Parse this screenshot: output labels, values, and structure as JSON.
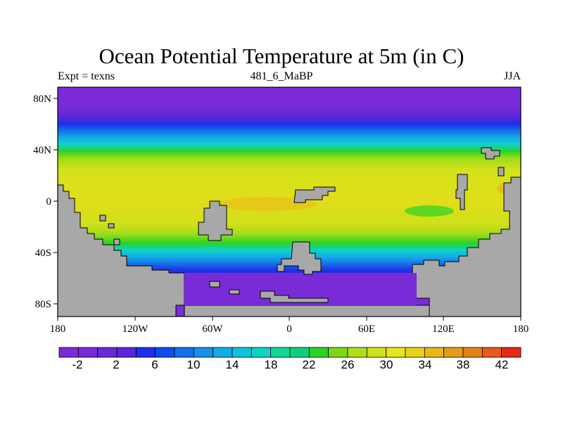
{
  "title": "Ocean Potential Temperature at 5m (in C)",
  "subtitle_left": "Expt = texns",
  "subtitle_center": "481_6_MaBP",
  "subtitle_right": "JJA",
  "x_ticks": [
    "180",
    "120W",
    "60W",
    "0",
    "60E",
    "120E",
    "180"
  ],
  "y_ticks": [
    "80N",
    "40N",
    "0",
    "40S",
    "80S"
  ],
  "colorbar": {
    "labels": [
      "-2",
      "2",
      "6",
      "10",
      "14",
      "18",
      "22",
      "26",
      "30",
      "34",
      "38",
      "42"
    ],
    "colors": [
      "#7a2bd8",
      "#7a2bd8",
      "#6a2ad4",
      "#5a28d6",
      "#1f2ee8",
      "#0d4ee8",
      "#1570ea",
      "#1890ea",
      "#14ace6",
      "#10c2e0",
      "#0ed2c8",
      "#12d896",
      "#0fd07a",
      "#2bd324",
      "#7dd61a",
      "#aede1a",
      "#cde21a",
      "#e6e61a",
      "#e6d21a",
      "#e6b81a",
      "#e69c1a",
      "#e6801a",
      "#e65a1a",
      "#e62a1a"
    ]
  },
  "colors": {
    "land": "#a8a8a8",
    "outline": "#000000"
  }
}
